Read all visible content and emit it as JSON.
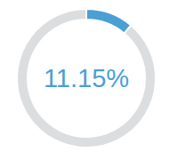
{
  "chart_data": {
    "type": "pie",
    "categories": [
      null,
      null
    ],
    "values": [
      11.15,
      88.85
    ],
    "value_labels": [
      "11.15%",
      null
    ],
    "colors": [
      "#4a9fd4",
      "#dcdddf"
    ],
    "data_labels": true
  }
}
